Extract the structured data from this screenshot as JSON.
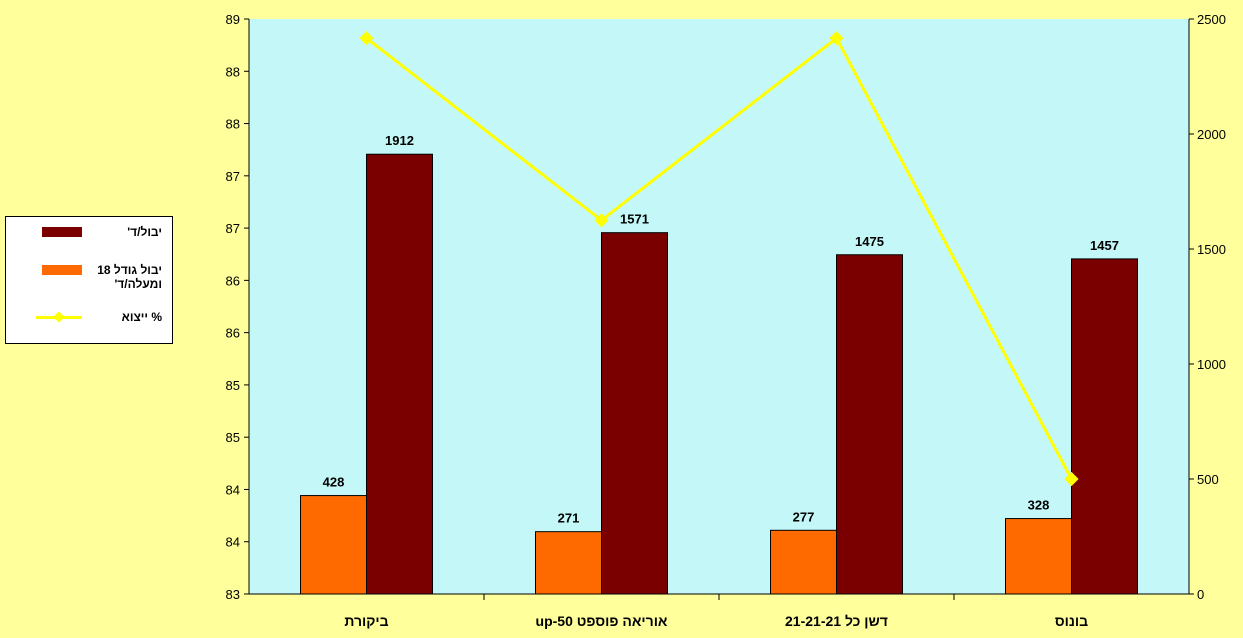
{
  "chart_data": {
    "type": "bar",
    "categories": [
      "ביקורת",
      "אוריאה פוספט 50-up",
      "דשן כל 21-21-21",
      "בונוס"
    ],
    "series": [
      {
        "name": "יבול גודל 18 ומעלה/ד'",
        "type": "bar",
        "axis": "right",
        "color": "#ff6a00",
        "values": [
          428,
          271,
          277,
          328
        ]
      },
      {
        "name": "יבול/ד'",
        "type": "bar",
        "axis": "right",
        "color": "#7a0000",
        "values": [
          1912,
          1571,
          1475,
          1457
        ]
      },
      {
        "name": "% ייצוא",
        "type": "line",
        "axis": "left",
        "color": "#ffff00",
        "values": [
          88.8,
          86.9,
          88.8,
          84.2
        ]
      }
    ],
    "left_axis": {
      "ylim": [
        83,
        89
      ],
      "tick_labels": [
        "83",
        "84",
        "84",
        "85",
        "85",
        "86",
        "86",
        "87",
        "87",
        "88",
        "88",
        "89"
      ]
    },
    "right_axis": {
      "ylim": [
        0,
        2500
      ],
      "tick_labels": [
        "0",
        "500",
        "1000",
        "1500",
        "2000",
        "2500"
      ]
    },
    "plot_background": "#c4f8f8",
    "page_background": "#ffff9c",
    "legend_position": "left",
    "grid": false
  }
}
